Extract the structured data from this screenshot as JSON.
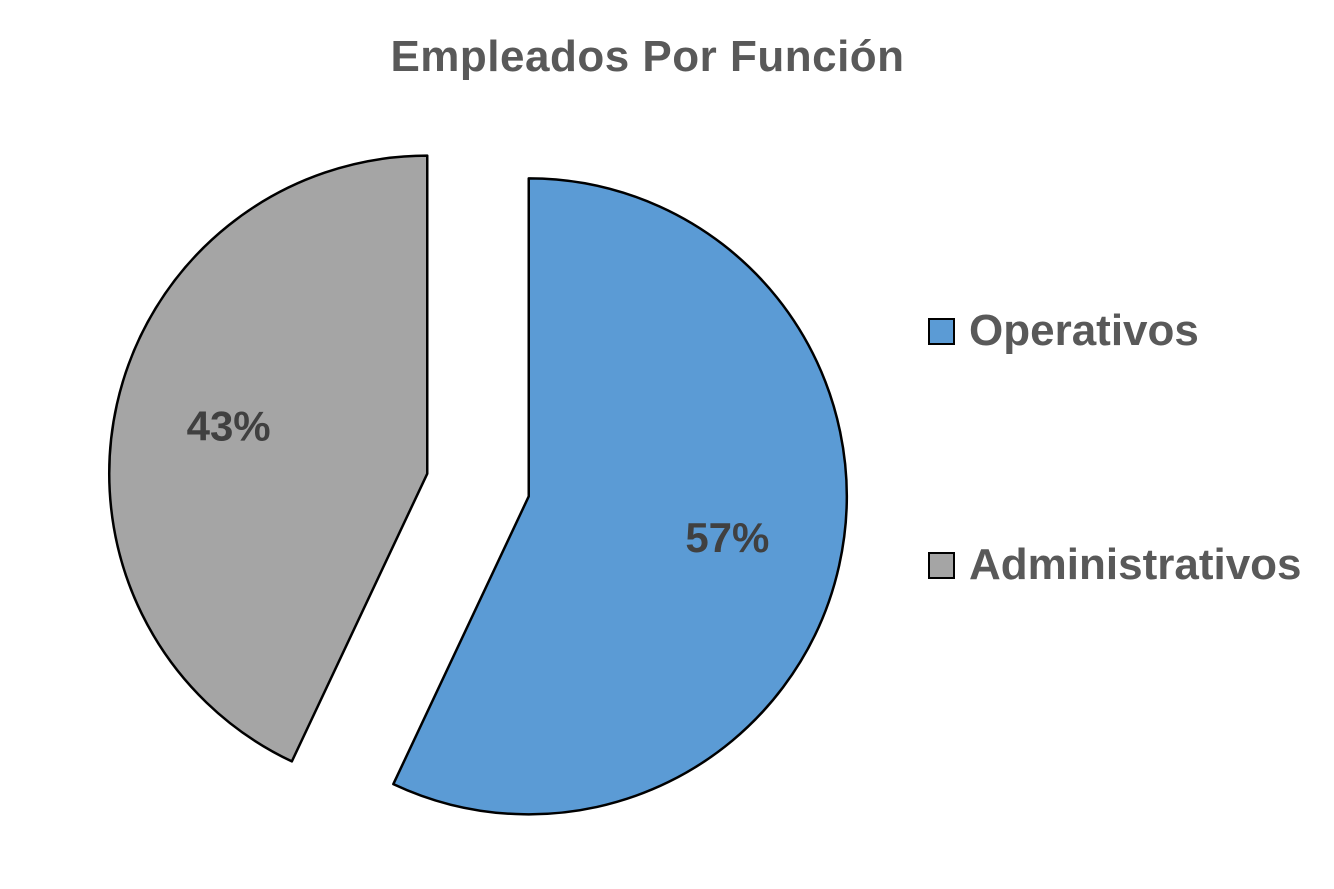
{
  "chart_data": {
    "type": "pie",
    "title": "Empleados Por Función",
    "categories": [
      "Operativos",
      "Administrativos"
    ],
    "values": [
      57,
      43
    ],
    "data_labels": [
      "57%",
      "43%"
    ],
    "colors": [
      "#5B9BD5",
      "#A5A5A5"
    ],
    "exploded": true,
    "legend_position": "right"
  }
}
